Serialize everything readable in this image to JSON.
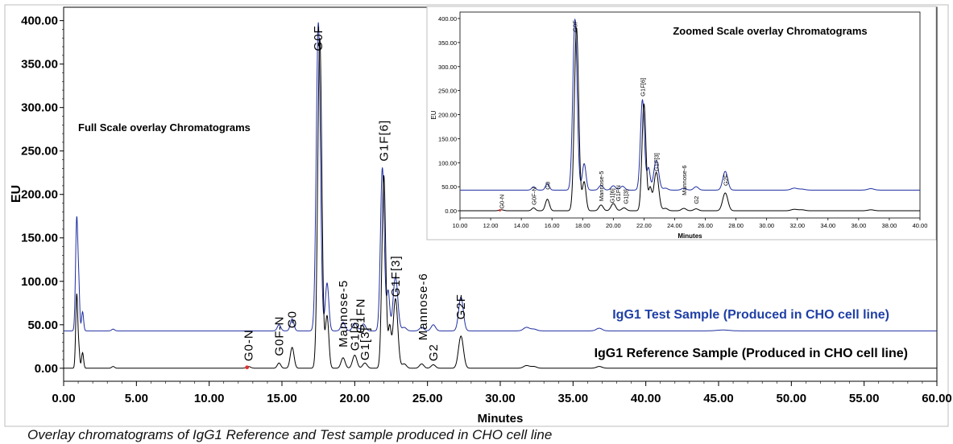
{
  "caption": "Overlay chromatograms of IgG1 Reference and Test sample produced in CHO cell line",
  "colors": {
    "test": "#1f2fa0",
    "reference": "#000000",
    "series_label_test": "#1f3fa6",
    "marker": "#e03030"
  },
  "chart_data": [
    {
      "type": "line",
      "title": "Full Scale overlay Chromatograms",
      "xlabel": "Minutes",
      "ylabel": "EU",
      "xlim": [
        0,
        60
      ],
      "ylim": [
        -15,
        408
      ],
      "x_ticks": [
        "0.00",
        "5.00",
        "10.00",
        "15.00",
        "20.00",
        "25.00",
        "30.00",
        "35.00",
        "40.00",
        "45.00",
        "50.00",
        "55.00",
        "60.00"
      ],
      "y_ticks": [
        "0.00",
        "50.00",
        "100.00",
        "150.00",
        "200.00",
        "250.00",
        "300.00",
        "350.00",
        "400.00"
      ],
      "grid": false,
      "series": [
        {
          "name": "IgG1 Test Sample (Produced in CHO cell line)",
          "baseline": 43,
          "peaks": [
            [
              0.9,
              130,
              0.08
            ],
            [
              1.05,
              40,
              0.06
            ],
            [
              1.3,
              22,
              0.07
            ],
            [
              3.4,
              2,
              0.1
            ],
            [
              14.8,
              7,
              0.12
            ],
            [
              15.7,
              14,
              0.12
            ],
            [
              17.5,
              355,
              0.14
            ],
            [
              18.1,
              55,
              0.12
            ],
            [
              19.2,
              10,
              0.14
            ],
            [
              20.0,
              9,
              0.15
            ],
            [
              20.6,
              8,
              0.15
            ],
            [
              21.9,
              188,
              0.13
            ],
            [
              22.3,
              45,
              0.1
            ],
            [
              22.8,
              62,
              0.16
            ],
            [
              23.4,
              4,
              0.15
            ],
            [
              24.6,
              4,
              0.15
            ],
            [
              25.4,
              7,
              0.15
            ],
            [
              27.3,
              39,
              0.16
            ],
            [
              31.8,
              4,
              0.2
            ],
            [
              32.3,
              2,
              0.2
            ],
            [
              36.8,
              3,
              0.2
            ],
            [
              45.3,
              1,
              0.4
            ]
          ]
        },
        {
          "name": "IgG1 Reference Sample (Produced in CHO cell line)",
          "baseline": 0,
          "peaks": [
            [
              0.9,
              85,
              0.07
            ],
            [
              1.05,
              20,
              0.06
            ],
            [
              1.3,
              18,
              0.07
            ],
            [
              3.4,
              2,
              0.1
            ],
            [
              12.7,
              2,
              0.15
            ],
            [
              14.8,
              6,
              0.12
            ],
            [
              15.7,
              24,
              0.13
            ],
            [
              17.6,
              380,
              0.14
            ],
            [
              18.1,
              60,
              0.12
            ],
            [
              19.2,
              12,
              0.14
            ],
            [
              20.0,
              15,
              0.15
            ],
            [
              20.7,
              6,
              0.15
            ],
            [
              22.0,
              222,
              0.13
            ],
            [
              22.4,
              45,
              0.1
            ],
            [
              22.8,
              80,
              0.16
            ],
            [
              23.4,
              5,
              0.15
            ],
            [
              24.6,
              5,
              0.15
            ],
            [
              25.4,
              4,
              0.15
            ],
            [
              27.3,
              37,
              0.17
            ],
            [
              31.8,
              3,
              0.2
            ],
            [
              32.3,
              2,
              0.2
            ],
            [
              36.8,
              2,
              0.2
            ]
          ]
        }
      ],
      "peak_labels": [
        {
          "text": "G0-N",
          "x": 12.7,
          "y": 8
        },
        {
          "text": "G0F-N",
          "x": 14.8,
          "y": 14
        },
        {
          "text": "G0",
          "x": 15.7,
          "y": 46
        },
        {
          "text": "G0F",
          "x": 17.5,
          "y": 365
        },
        {
          "text": "Mannose-5",
          "x": 19.2,
          "y": 24
        },
        {
          "text": "G1[6]",
          "x": 20.0,
          "y": 20
        },
        {
          "text": "G1FN",
          "x": 20.4,
          "y": 40
        },
        {
          "text": "G1[3]",
          "x": 20.7,
          "y": 9
        },
        {
          "text": "G1F[6]",
          "x": 22.0,
          "y": 238
        },
        {
          "text": "G1F[3]",
          "x": 22.8,
          "y": 82
        },
        {
          "text": "Mannose-6",
          "x": 24.7,
          "y": 32
        },
        {
          "text": "G2",
          "x": 25.4,
          "y": 8
        },
        {
          "text": "G2F",
          "x": 27.3,
          "y": 56
        }
      ],
      "series_labels": [
        {
          "text": "IgG1 Test Sample (Produced in CHO cell line)",
          "series": 0
        },
        {
          "text": "IgG1 Reference Sample (Produced in CHO cell line)",
          "series": 1
        }
      ],
      "marker": {
        "x": 12.6,
        "y": 1
      }
    },
    {
      "type": "line",
      "title": "Zoomed Scale overlay Chromatograms",
      "xlabel": "Minutes",
      "ylabel": "EU",
      "xlim": [
        10,
        40
      ],
      "ylim": [
        -15,
        405
      ],
      "x_ticks": [
        "10.00",
        "12.00",
        "14.00",
        "16.00",
        "18.00",
        "20.00",
        "22.00",
        "24.00",
        "26.00",
        "28.00",
        "30.00",
        "32.00",
        "34.00",
        "36.00",
        "38.00",
        "40.00"
      ],
      "y_ticks": [
        "0.00",
        "50.00",
        "100.00",
        "150.00",
        "200.00",
        "250.00",
        "300.00",
        "350.00",
        "400.00"
      ],
      "grid": false,
      "peak_labels": [
        {
          "text": "G0-N",
          "x": 12.7,
          "y": 4
        },
        {
          "text": "G0F-N",
          "x": 14.8,
          "y": 12
        },
        {
          "text": "G0",
          "x": 15.7,
          "y": 44
        },
        {
          "text": "G0F",
          "x": 17.5,
          "y": 372
        },
        {
          "text": "Mannose-5",
          "x": 19.2,
          "y": 20
        },
        {
          "text": "G1[6]",
          "x": 19.9,
          "y": 16
        },
        {
          "text": "G1FN",
          "x": 20.3,
          "y": 20
        },
        {
          "text": "G1[3]",
          "x": 20.8,
          "y": 14
        },
        {
          "text": "G1F[6]",
          "x": 21.9,
          "y": 238
        },
        {
          "text": "G1F[3]",
          "x": 22.8,
          "y": 82
        },
        {
          "text": "Mannose-6",
          "x": 24.6,
          "y": 32
        },
        {
          "text": "G2",
          "x": 25.4,
          "y": 14
        },
        {
          "text": "G2F",
          "x": 27.3,
          "y": 52
        }
      ],
      "marker": {
        "x": 12.6,
        "y": 1
      }
    }
  ]
}
